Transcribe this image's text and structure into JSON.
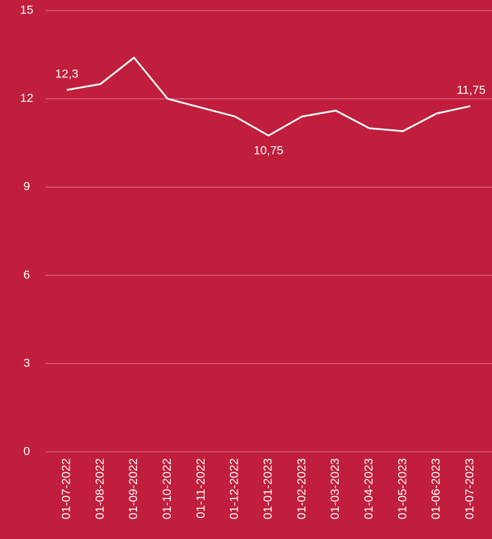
{
  "chart_data": {
    "type": "line",
    "background": "#c01e3c",
    "categories": [
      "01-07-2022",
      "01-08-2022",
      "01-09-2022",
      "01-10-2022",
      "01-11-2022",
      "01-12-2022",
      "01-01-2023",
      "01-02-2023",
      "01-03-2023",
      "01-04-2023",
      "01-05-2023",
      "01-06-2023",
      "01-07-2023"
    ],
    "series": [
      {
        "color": "#ffffff",
        "values": [
          12.3,
          12.5,
          13.4,
          12.0,
          11.7,
          11.4,
          10.75,
          11.4,
          11.6,
          11.0,
          10.9,
          11.5,
          11.75
        ],
        "value_labels": [
          "12,3",
          null,
          null,
          null,
          null,
          null,
          "10,75",
          null,
          null,
          null,
          null,
          null,
          "11,75"
        ]
      }
    ],
    "ylim": [
      0,
      15
    ],
    "yticks": [
      0,
      3,
      6,
      9,
      12,
      15
    ],
    "grid": true
  }
}
